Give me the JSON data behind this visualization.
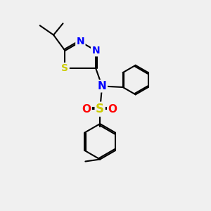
{
  "background_color": "#f0f0f0",
  "bond_color": "#000000",
  "atom_colors": {
    "N": "#0000ff",
    "S_thiadiazole": "#cccc00",
    "S_sulfonyl": "#cccc00",
    "O": "#ff0000",
    "C": "#000000"
  },
  "font_size_atom": 11,
  "fig_width": 3.0,
  "fig_height": 3.0,
  "dpi": 100
}
